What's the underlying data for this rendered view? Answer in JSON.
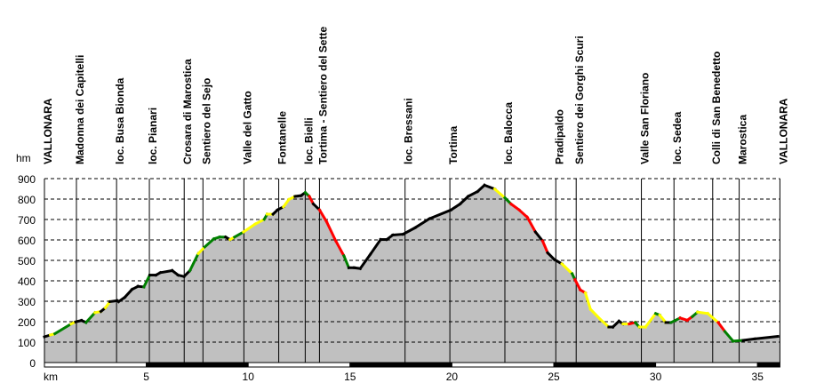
{
  "chart_data": {
    "type": "area",
    "title": "",
    "ylabel": "hm",
    "xlabel": "km",
    "xlim": [
      0,
      36.1
    ],
    "ylim": [
      0,
      900
    ],
    "yticks": [
      0,
      100,
      200,
      300,
      400,
      500,
      600,
      700,
      800,
      900
    ],
    "xticks": [
      5,
      10,
      15,
      20,
      25,
      30,
      35
    ],
    "grid": true,
    "slope_colors": {
      "k": "#000000",
      "y": "#ffff00",
      "g": "#008000",
      "r": "#ff0000"
    },
    "fill_color": "#c0c0c0",
    "waypoints": [
      {
        "name": "VALLONARA",
        "km": 0
      },
      {
        "name": "Madonna dei Capitelli",
        "km": 1.57
      },
      {
        "name": "loc. Busa Bionda",
        "km": 3.54
      },
      {
        "name": "loc. Pianari",
        "km": 5.15
      },
      {
        "name": "Crosara di Marostica",
        "km": 6.86
      },
      {
        "name": "Sentiero del Sejo",
        "km": 7.78
      },
      {
        "name": "Valle del Gatto",
        "km": 9.79
      },
      {
        "name": "Fontanelle",
        "km": 11.5
      },
      {
        "name": "loc. Bielli",
        "km": 12.8
      },
      {
        "name": "Tortima - Sentiero del Sette",
        "km": 13.5
      },
      {
        "name": "loc. Bressani",
        "km": 17.7
      },
      {
        "name": "Tortima",
        "km": 19.9
      },
      {
        "name": "loc. Balocca",
        "km": 22.6
      },
      {
        "name": "Pradipaldo",
        "km": 25.1
      },
      {
        "name": "Sentiero dei Gorghi Scuri",
        "km": 26.1
      },
      {
        "name": "Valle San Floriano",
        "km": 29.3
      },
      {
        "name": "loc. Sedea",
        "km": 30.9
      },
      {
        "name": "Colli di San Benedetto",
        "km": 32.8
      },
      {
        "name": "Marostica",
        "km": 34.1
      },
      {
        "name": "VALLONARA",
        "km": 36.1
      }
    ],
    "profile": [
      [
        0,
        126,
        "k"
      ],
      [
        0.29,
        135,
        "k"
      ],
      [
        0.51,
        141,
        "y"
      ],
      [
        1.31,
        189,
        "g"
      ],
      [
        1.53,
        199,
        "y"
      ],
      [
        1.82,
        206,
        "k"
      ],
      [
        2.04,
        196,
        "k"
      ],
      [
        2.48,
        244,
        "g"
      ],
      [
        2.77,
        250,
        "y"
      ],
      [
        2.99,
        268,
        "k"
      ],
      [
        3.21,
        298,
        "y"
      ],
      [
        3.57,
        303,
        "k"
      ],
      [
        3.64,
        298,
        "k"
      ],
      [
        3.94,
        319,
        "k"
      ],
      [
        4.3,
        358,
        "k"
      ],
      [
        4.59,
        373,
        "k"
      ],
      [
        4.88,
        370,
        "k"
      ],
      [
        5.17,
        428,
        "g"
      ],
      [
        5.47,
        428,
        "k"
      ],
      [
        5.69,
        440,
        "k"
      ],
      [
        6.27,
        450,
        "k"
      ],
      [
        6.56,
        428,
        "k"
      ],
      [
        6.85,
        421,
        "k"
      ],
      [
        7.14,
        450,
        "k"
      ],
      [
        7.55,
        533,
        "g"
      ],
      [
        7.87,
        566,
        "y"
      ],
      [
        8.31,
        605,
        "g"
      ],
      [
        8.6,
        614,
        "g"
      ],
      [
        8.89,
        614,
        "g"
      ],
      [
        9.11,
        602,
        "k"
      ],
      [
        9.33,
        614,
        "y"
      ],
      [
        9.77,
        639,
        "g"
      ],
      [
        10.35,
        678,
        "y"
      ],
      [
        10.79,
        701,
        "y"
      ],
      [
        10.93,
        726,
        "g"
      ],
      [
        11.22,
        726,
        "y"
      ],
      [
        11.44,
        747,
        "k"
      ],
      [
        11.73,
        762,
        "k"
      ],
      [
        12.0,
        798,
        "y"
      ],
      [
        12.3,
        813,
        "y"
      ],
      [
        12.6,
        817,
        "k"
      ],
      [
        12.8,
        832,
        "k"
      ],
      [
        13.0,
        813,
        "g"
      ],
      [
        13.2,
        776,
        "r"
      ],
      [
        13.5,
        747,
        "k"
      ],
      [
        13.85,
        689,
        "r"
      ],
      [
        14.3,
        595,
        "r"
      ],
      [
        14.7,
        522,
        "r"
      ],
      [
        14.94,
        464,
        "g"
      ],
      [
        15.2,
        464,
        "k"
      ],
      [
        15.5,
        460,
        "k"
      ],
      [
        16.0,
        530,
        "k"
      ],
      [
        16.5,
        602,
        "k"
      ],
      [
        16.8,
        602,
        "k"
      ],
      [
        17.1,
        624,
        "k"
      ],
      [
        17.6,
        628,
        "k"
      ],
      [
        18.2,
        660,
        "k"
      ],
      [
        18.9,
        704,
        "k"
      ],
      [
        19.96,
        747,
        "k"
      ],
      [
        20.4,
        776,
        "k"
      ],
      [
        20.8,
        813,
        "k"
      ],
      [
        21.26,
        837,
        "k"
      ],
      [
        21.6,
        868,
        "k"
      ],
      [
        22.1,
        849,
        "k"
      ],
      [
        22.6,
        806,
        "y"
      ],
      [
        22.9,
        776,
        "g"
      ],
      [
        23.3,
        747,
        "r"
      ],
      [
        23.7,
        711,
        "r"
      ],
      [
        24.1,
        639,
        "r"
      ],
      [
        24.45,
        595,
        "k"
      ],
      [
        24.7,
        537,
        "r"
      ],
      [
        25.03,
        504,
        "k"
      ],
      [
        25.4,
        483,
        "k"
      ],
      [
        25.9,
        435,
        "y"
      ],
      [
        26.04,
        406,
        "g"
      ],
      [
        26.3,
        356,
        "r"
      ],
      [
        26.55,
        341,
        "r"
      ],
      [
        26.8,
        261,
        "y"
      ],
      [
        27.3,
        210,
        "y"
      ],
      [
        27.7,
        174,
        "y"
      ],
      [
        27.9,
        174,
        "k"
      ],
      [
        28.2,
        203,
        "k"
      ],
      [
        28.4,
        189,
        "k"
      ],
      [
        28.7,
        189,
        "y"
      ],
      [
        29.0,
        196,
        "r"
      ],
      [
        29.2,
        174,
        "g"
      ],
      [
        29.5,
        174,
        "y"
      ],
      [
        30.0,
        240,
        "y"
      ],
      [
        30.2,
        232,
        "g"
      ],
      [
        30.5,
        196,
        "y"
      ],
      [
        30.75,
        196,
        "k"
      ],
      [
        31.2,
        218,
        "g"
      ],
      [
        31.55,
        207,
        "r"
      ],
      [
        31.8,
        225,
        "r"
      ],
      [
        32.06,
        247,
        "g"
      ],
      [
        32.56,
        240,
        "y"
      ],
      [
        33.07,
        196,
        "y"
      ],
      [
        33.4,
        152,
        "r"
      ],
      [
        33.8,
        105,
        "g"
      ],
      [
        34.3,
        109,
        "g"
      ],
      [
        34.86,
        116,
        "k"
      ],
      [
        36.0,
        128,
        "k"
      ]
    ]
  }
}
